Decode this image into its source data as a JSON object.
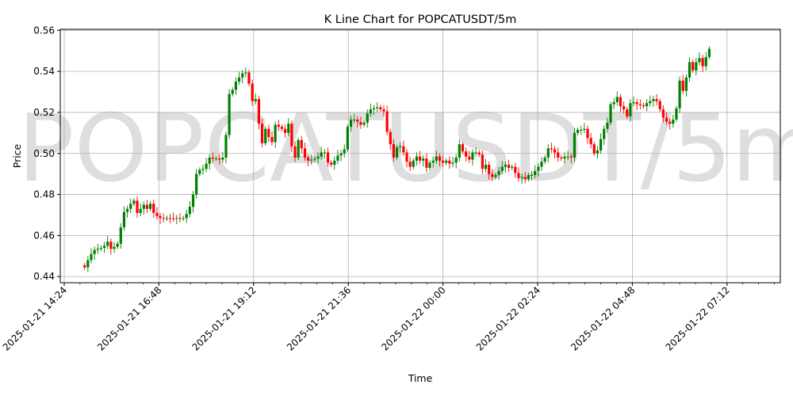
{
  "chart_data": {
    "type": "candlestick",
    "title": "K Line Chart for POPCATUSDT/5m",
    "xlabel": "Time",
    "ylabel": "Price",
    "watermark": "POPCATUSDT/5m",
    "ylim": [
      0.437,
      0.5605
    ],
    "yticks": [
      "0.44",
      "0.46",
      "0.48",
      "0.50",
      "0.52",
      "0.54",
      "0.56"
    ],
    "ytick_values": [
      0.44,
      0.46,
      0.48,
      0.5,
      0.52,
      0.54,
      0.56
    ],
    "xticks": [
      "2025-01-21 14:24",
      "2025-01-21 16:48",
      "2025-01-21 19:12",
      "2025-01-21 21:36",
      "2025-01-22 00:00",
      "2025-01-22 02:24",
      "2025-01-22 04:48",
      "2025-01-22 07:12"
    ],
    "grid": true,
    "up_color": "#008000",
    "down_color": "#ff0000",
    "interval_minutes": 5,
    "first_candle": "2025-01-21 14:55",
    "close": [
      0.4445,
      0.448,
      0.451,
      0.453,
      0.4535,
      0.454,
      0.455,
      0.457,
      0.4535,
      0.4545,
      0.456,
      0.464,
      0.4715,
      0.473,
      0.4755,
      0.477,
      0.471,
      0.473,
      0.475,
      0.473,
      0.4755,
      0.471,
      0.4695,
      0.4685,
      0.4683,
      0.4685,
      0.4684,
      0.4683,
      0.4685,
      0.4683,
      0.4685,
      0.4705,
      0.474,
      0.48,
      0.49,
      0.492,
      0.4925,
      0.495,
      0.498,
      0.4975,
      0.4975,
      0.497,
      0.498,
      0.509,
      0.529,
      0.531,
      0.535,
      0.537,
      0.539,
      0.5395,
      0.534,
      0.5255,
      0.5265,
      0.5145,
      0.505,
      0.512,
      0.508,
      0.5055,
      0.514,
      0.513,
      0.512,
      0.51,
      0.5145,
      0.5035,
      0.498,
      0.5065,
      0.5025,
      0.498,
      0.4965,
      0.497,
      0.4975,
      0.4985,
      0.5005,
      0.5005,
      0.4955,
      0.4945,
      0.4965,
      0.499,
      0.5,
      0.502,
      0.513,
      0.5165,
      0.5165,
      0.5155,
      0.514,
      0.515,
      0.5195,
      0.5215,
      0.522,
      0.5225,
      0.5215,
      0.5205,
      0.5105,
      0.5045,
      0.498,
      0.503,
      0.5035,
      0.5005,
      0.496,
      0.4935,
      0.4965,
      0.4985,
      0.4965,
      0.4975,
      0.493,
      0.4955,
      0.4965,
      0.4985,
      0.4965,
      0.4955,
      0.4965,
      0.495,
      0.4955,
      0.498,
      0.5045,
      0.501,
      0.4985,
      0.497,
      0.5005,
      0.5005,
      0.4995,
      0.4925,
      0.4945,
      0.49,
      0.4885,
      0.4895,
      0.4915,
      0.4935,
      0.4945,
      0.493,
      0.4935,
      0.4905,
      0.488,
      0.4885,
      0.4875,
      0.4895,
      0.4895,
      0.4915,
      0.4935,
      0.496,
      0.498,
      0.5025,
      0.502,
      0.5005,
      0.498,
      0.4975,
      0.4985,
      0.4985,
      0.498,
      0.51,
      0.5115,
      0.5115,
      0.512,
      0.5075,
      0.5045,
      0.5,
      0.5015,
      0.507,
      0.512,
      0.515,
      0.524,
      0.525,
      0.5275,
      0.523,
      0.5215,
      0.518,
      0.5245,
      0.525,
      0.524,
      0.5235,
      0.523,
      0.5245,
      0.5255,
      0.5265,
      0.5255,
      0.5215,
      0.5175,
      0.5155,
      0.5145,
      0.5165,
      0.522,
      0.5355,
      0.5305,
      0.537,
      0.5445,
      0.5405,
      0.5445,
      0.5465,
      0.5425,
      0.547,
      0.551
    ]
  }
}
